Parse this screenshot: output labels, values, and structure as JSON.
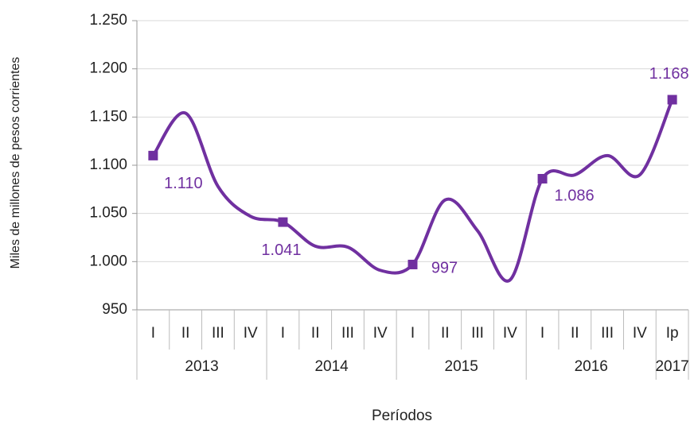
{
  "chart_data": {
    "type": "line",
    "y_label": "Miles de millones de pesos corrientes",
    "x_label": "Períodos",
    "categories": [
      "I",
      "II",
      "III",
      "IV",
      "I",
      "II",
      "III",
      "IV",
      "I",
      "II",
      "III",
      "IV",
      "I",
      "II",
      "III",
      "IV",
      "Ip"
    ],
    "groups": [
      {
        "label": "2013",
        "count": 4
      },
      {
        "label": "2014",
        "count": 4
      },
      {
        "label": "2015",
        "count": 4
      },
      {
        "label": "2016",
        "count": 4
      },
      {
        "label": "2017",
        "count": 1
      }
    ],
    "series": [
      {
        "color": "#7030a0",
        "values": [
          1110,
          1154,
          1078,
          1047,
          1041,
          1016,
          1015,
          991,
          997,
          1064,
          1032,
          981,
          1086,
          1090,
          1110,
          1090,
          1168
        ],
        "value_labels": [
          "1.110",
          null,
          null,
          null,
          "1.041",
          null,
          null,
          null,
          "997",
          null,
          null,
          null,
          "1.086",
          null,
          null,
          null,
          "1.168"
        ]
      }
    ],
    "ylim": [
      950,
      1250
    ],
    "yticks": [
      950,
      {
        "value": 1000,
        "label": "1.000"
      },
      {
        "value": 1050,
        "label": "1.050"
      },
      {
        "value": 1100,
        "label": "1.100"
      },
      {
        "value": 1150,
        "label": "1.150"
      },
      {
        "value": 1200,
        "label": "1.200"
      },
      {
        "value": 1250,
        "label": "1.250"
      }
    ],
    "grid": true
  }
}
